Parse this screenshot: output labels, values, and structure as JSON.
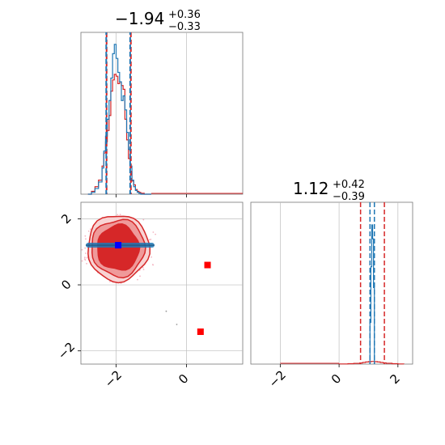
{
  "chart_data": {
    "type": "corner",
    "parameters": [
      {
        "title": {
          "median": "−1.94",
          "plus": "+0.36",
          "minus": "−0.33"
        },
        "range": [
          -3.0,
          1.6
        ],
        "ticks": [
          -2,
          0
        ],
        "tick_labels": [
          "−2",
          "0"
        ],
        "quantile_lines": {
          "red": [
            -2.27,
            -1.58
          ],
          "blue": [
            -2.28,
            -1.6
          ]
        },
        "hist_bins": [
          -2.8,
          -2.7,
          -2.6,
          -2.5,
          -2.4,
          -2.35,
          -2.3,
          -2.25,
          -2.2,
          -2.15,
          -2.1,
          -2.05,
          -2.0,
          -1.95,
          -1.9,
          -1.85,
          -1.8,
          -1.75,
          -1.7,
          -1.65,
          -1.6,
          -1.55,
          -1.5,
          -1.45,
          -1.4,
          -1.35,
          -1.3,
          -1.2,
          -1.0
        ],
        "hist_red": [
          0,
          3,
          8,
          15,
          30,
          44,
          56,
          68,
          84,
          110,
          122,
          128,
          126,
          118,
          120,
          116,
          112,
          80,
          58,
          38,
          24,
          14,
          10,
          5,
          3,
          2,
          1,
          0
        ],
        "hist_blue": [
          0,
          2,
          6,
          13,
          28,
          46,
          62,
          80,
          100,
          124,
          150,
          160,
          145,
          130,
          120,
          100,
          105,
          90,
          66,
          48,
          30,
          15,
          8,
          4,
          2,
          1,
          0,
          0
        ]
      },
      {
        "title": {
          "median": "1.12",
          "plus": "+0.42",
          "minus": "−0.39"
        },
        "range": [
          -3.0,
          2.5
        ],
        "ticks": [
          -2,
          0,
          2
        ],
        "tick_labels": [
          "−2",
          "0",
          "2"
        ],
        "quantile_lines": {
          "red": [
            0.73,
            1.54
          ],
          "blue": [
            1.05,
            1.2
          ]
        },
        "hist_red_x": [
          0.0,
          0.3,
          0.5,
          0.7,
          0.8,
          0.9,
          1.0,
          1.1,
          1.2,
          1.3,
          1.4,
          1.5,
          1.6,
          1.8,
          2.0,
          2.2
        ],
        "hist_red_y": [
          0.02,
          0.05,
          0.09,
          0.14,
          0.2,
          0.26,
          0.3,
          0.33,
          0.3,
          0.26,
          0.2,
          0.15,
          0.1,
          0.05,
          0.02,
          0.0
        ],
        "hist_blue_x": [
          1.05,
          1.08,
          1.11,
          1.14,
          1.17,
          1.2
        ],
        "hist_blue_y": [
          0.3,
          0.7,
          1.0,
          0.9,
          0.55,
          0.2
        ]
      }
    ],
    "joint": {
      "x_range": [
        -3.0,
        1.6
      ],
      "y_range": [
        -2.4,
        2.5
      ],
      "x_ticks": [
        -2,
        0
      ],
      "x_tick_labels": [
        "−2",
        "0"
      ],
      "y_ticks": [
        -2,
        0,
        2
      ],
      "y_tick_labels": [
        "−2",
        "0",
        "2"
      ],
      "red_center": [
        -1.94,
        1.12
      ],
      "blue_center": [
        -1.94,
        1.2
      ],
      "blue_span_x": [
        -3.0,
        -1.0
      ],
      "red_markers": [
        [
          0.6,
          0.6
        ],
        [
          0.4,
          -1.42
        ]
      ],
      "grid": true
    },
    "colors": {
      "red": "#d62728",
      "red_light": "#ef9a9a",
      "red_mid": "#e57373",
      "blue": "#1f77b4",
      "blue_marker": "#0000ff",
      "red_marker": "#ff0000",
      "grid": "#bdbdbd"
    }
  }
}
